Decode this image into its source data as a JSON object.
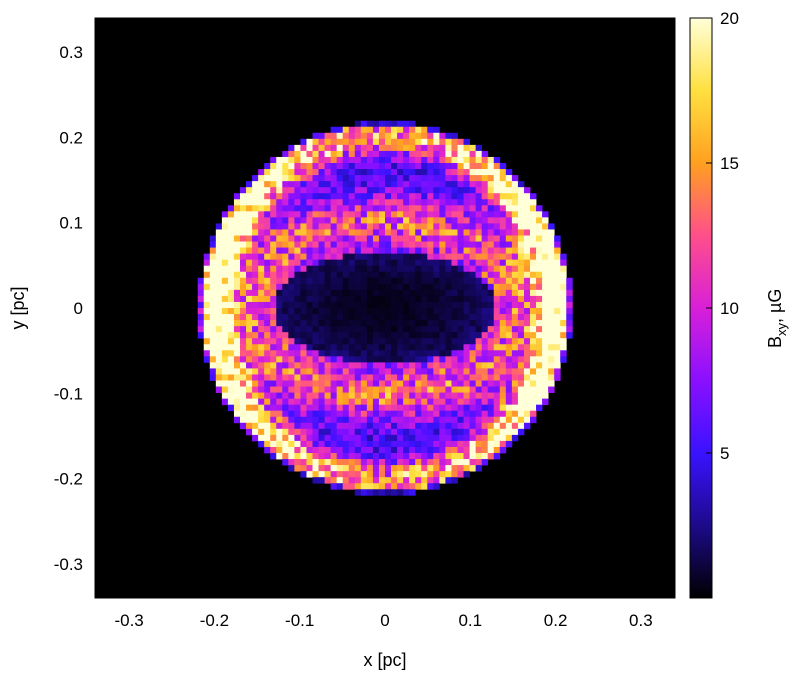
{
  "chart_data": {
    "type": "heatmap",
    "title": "",
    "xlabel": "x [pc]",
    "ylabel": "y [pc]",
    "xlim": [
      -0.34,
      0.34
    ],
    "ylim": [
      -0.34,
      0.34
    ],
    "xticks": [
      {
        "value": -0.3,
        "label": "-0.3"
      },
      {
        "value": -0.2,
        "label": "-0.2"
      },
      {
        "value": -0.1,
        "label": "-0.1"
      },
      {
        "value": 0,
        "label": "0"
      },
      {
        "value": 0.1,
        "label": "0.1"
      },
      {
        "value": 0.2,
        "label": "0.2"
      },
      {
        "value": 0.3,
        "label": "0.3"
      }
    ],
    "yticks": [
      {
        "value": -0.3,
        "label": "-0.3"
      },
      {
        "value": -0.2,
        "label": "-0.2"
      },
      {
        "value": -0.1,
        "label": "-0.1"
      },
      {
        "value": 0,
        "label": "0"
      },
      {
        "value": 0.1,
        "label": "0.1"
      },
      {
        "value": 0.2,
        "label": "0.2"
      },
      {
        "value": 0.3,
        "label": "0.3"
      }
    ],
    "colorbar": {
      "label_main": "B",
      "label_sub": "xy",
      "label_rest": ", µG",
      "range": [
        0,
        20
      ],
      "ticks": [
        {
          "value": 5,
          "label": "5"
        },
        {
          "value": 10,
          "label": "10"
        },
        {
          "value": 15,
          "label": "15"
        },
        {
          "value": 20,
          "label": "20"
        }
      ],
      "colormap": [
        "#000000",
        "#1d0a8a",
        "#3a12ff",
        "#8a10ff",
        "#d820d8",
        "#ff4f8a",
        "#ffa020",
        "#ffe040",
        "#ffffd8"
      ]
    },
    "background_color": "#000000",
    "grid": false,
    "structure": {
      "shell_center": [
        0.0,
        0.0
      ],
      "shell_outer_radius": 0.215,
      "shell_inner_radius": 0.19,
      "shell_peak_value": 20,
      "inner_ring_radius_x": 0.16,
      "inner_ring_radius_y": 0.1,
      "inner_ring_peak_value": 8,
      "cavity_radius_x": 0.13,
      "cavity_radius_y": 0.065,
      "cavity_value": 0.5
    }
  }
}
